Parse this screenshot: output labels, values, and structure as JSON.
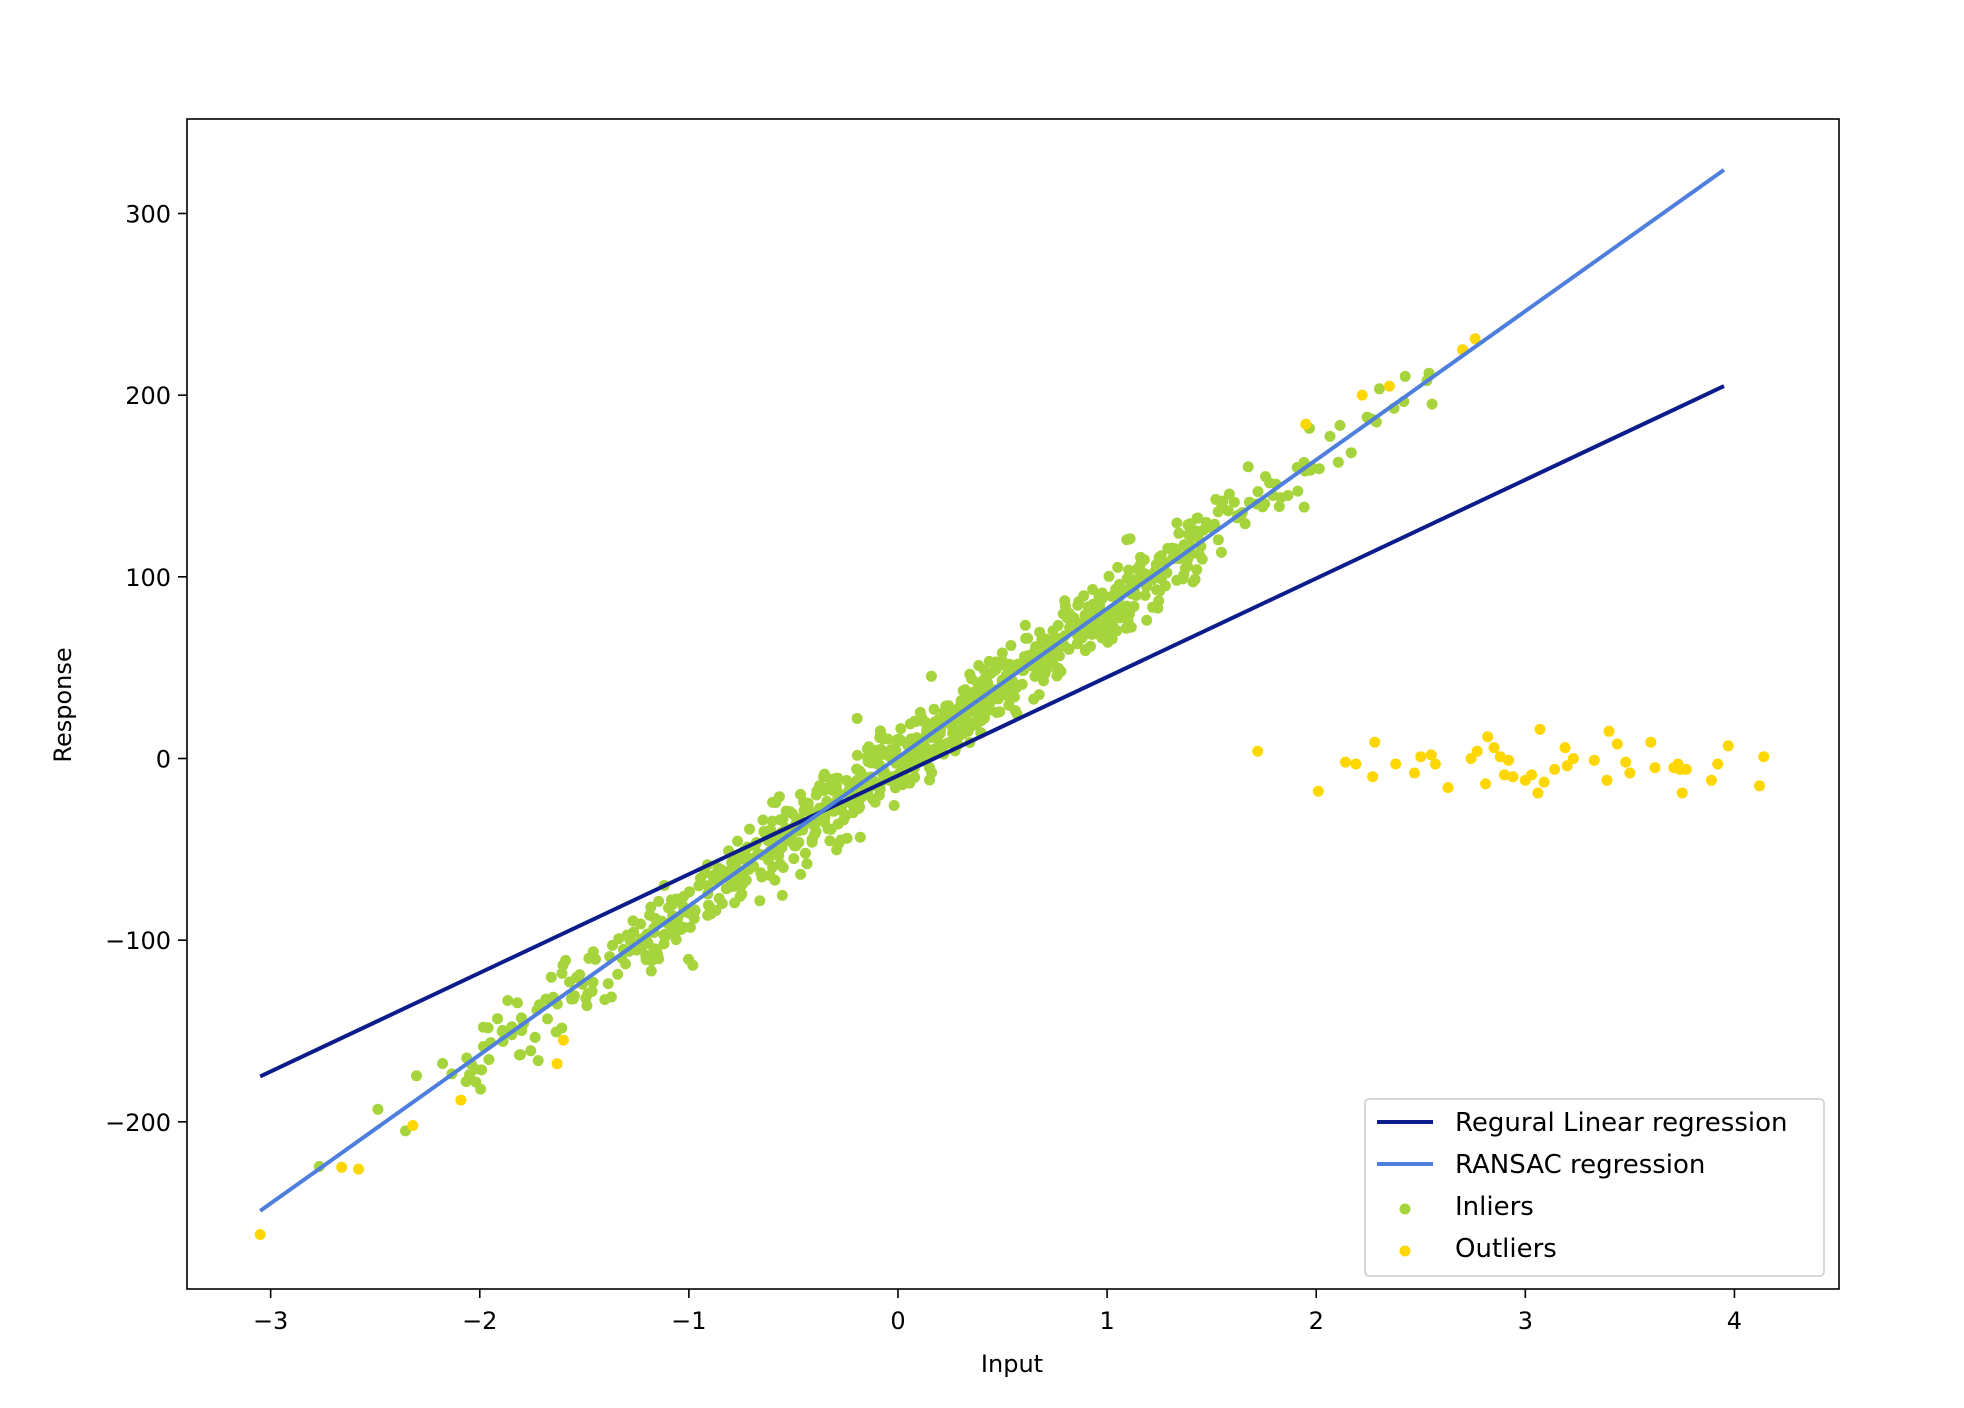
{
  "chart_data": {
    "type": "scatter",
    "title": "",
    "xlabel": "Input",
    "ylabel": "Response",
    "xlim": [
      -3.4,
      4.5
    ],
    "ylim": [
      -292,
      352
    ],
    "xticks": [
      -3,
      -2,
      -1,
      0,
      1,
      2,
      3,
      4
    ],
    "xtick_labels": [
      "−3",
      "−2",
      "−1",
      "0",
      "1",
      "2",
      "3",
      "4"
    ],
    "yticks": [
      -200,
      -100,
      0,
      100,
      200,
      300
    ],
    "ytick_labels": [
      "−200",
      "−100",
      "0",
      "100",
      "200",
      "300"
    ],
    "grid": false,
    "legend_position": "lower-right",
    "lines": [
      {
        "name": "Regural Linear regression",
        "color": "#0c1c8a",
        "x": [
          -3.05,
          3.95
        ],
        "y": [
          -175,
          205
        ]
      },
      {
        "name": "RANSAC regression",
        "color": "#4f7fdd",
        "x": [
          -3.05,
          3.95
        ],
        "y": [
          -249,
          324
        ]
      }
    ],
    "scatter_series": [
      {
        "name": "Inliers",
        "color": "#a6d43c",
        "slope": 82,
        "intercept": 0,
        "x_range": [
          -2.85,
          2.6
        ],
        "count": 900,
        "noise_sd": 10
      },
      {
        "name": "Outliers",
        "color": "#ffd700",
        "points": [
          [
            -3.05,
            -262
          ],
          [
            -2.66,
            -225
          ],
          [
            -2.58,
            -226
          ],
          [
            -2.32,
            -202
          ],
          [
            -2.09,
            -188
          ],
          [
            -1.63,
            -168
          ],
          [
            -1.6,
            -155
          ],
          [
            1.72,
            4
          ],
          [
            1.95,
            184
          ],
          [
            2.01,
            -18
          ],
          [
            2.14,
            -2
          ],
          [
            2.19,
            -3
          ],
          [
            2.22,
            200
          ],
          [
            2.27,
            -10
          ],
          [
            2.28,
            9
          ],
          [
            2.35,
            205
          ],
          [
            2.38,
            -3
          ],
          [
            2.47,
            -8
          ],
          [
            2.5,
            1
          ],
          [
            2.55,
            2
          ],
          [
            2.57,
            -3
          ],
          [
            2.63,
            -16
          ],
          [
            2.7,
            225
          ],
          [
            2.74,
            0
          ],
          [
            2.76,
            231
          ],
          [
            2.77,
            4
          ],
          [
            2.81,
            -14
          ],
          [
            2.82,
            12
          ],
          [
            2.85,
            6
          ],
          [
            2.88,
            1
          ],
          [
            2.9,
            -9
          ],
          [
            2.92,
            -1
          ],
          [
            2.94,
            -10
          ],
          [
            3.0,
            -12
          ],
          [
            3.03,
            -9
          ],
          [
            3.06,
            -19
          ],
          [
            3.07,
            16
          ],
          [
            3.09,
            -13
          ],
          [
            3.14,
            -6
          ],
          [
            3.19,
            6
          ],
          [
            3.2,
            -4
          ],
          [
            3.23,
            0
          ],
          [
            3.33,
            -1
          ],
          [
            3.39,
            -12
          ],
          [
            3.4,
            15
          ],
          [
            3.44,
            8
          ],
          [
            3.48,
            -2
          ],
          [
            3.5,
            -8
          ],
          [
            3.6,
            9
          ],
          [
            3.62,
            -5
          ],
          [
            3.71,
            -5
          ],
          [
            3.73,
            -3
          ],
          [
            3.74,
            -6
          ],
          [
            3.75,
            -19
          ],
          [
            3.77,
            -6
          ],
          [
            3.89,
            -12
          ],
          [
            3.92,
            -3
          ],
          [
            3.97,
            7
          ],
          [
            4.12,
            -15
          ],
          [
            4.14,
            1
          ]
        ]
      }
    ]
  }
}
